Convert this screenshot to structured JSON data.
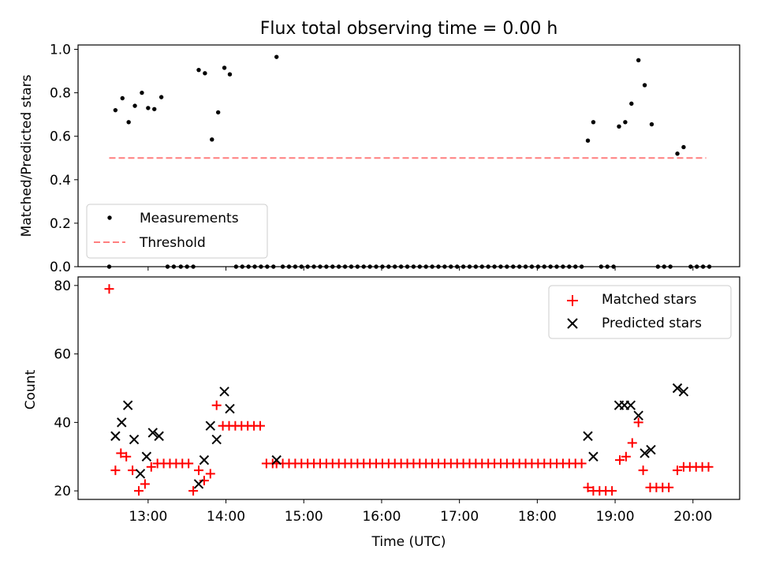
{
  "chart_data": [
    {
      "type": "scatter",
      "title": "Flux total observing time = 0.00 h",
      "xlabel": "",
      "ylabel": "Matched/Predicted stars",
      "xlim": [
        12.1,
        20.6
      ],
      "ylim": [
        0,
        1.02
      ],
      "yticks": [
        0,
        0.2,
        0.4,
        0.6,
        0.8,
        1.0
      ],
      "ytick_labels": [
        "0.0",
        "0.2",
        "0.4",
        "0.6",
        "0.8",
        "1.0"
      ],
      "x_tick_hours": [
        13,
        14,
        15,
        16,
        17,
        18,
        19,
        20
      ],
      "legend": {
        "position": "lower-left",
        "entries": [
          "Measurements",
          "Threshold"
        ]
      },
      "threshold": {
        "name": "Threshold",
        "y": 0.5,
        "x": [
          12.5,
          20.17
        ],
        "color": "#ff7f7f",
        "style": "dashed"
      },
      "series": [
        {
          "name": "Measurements",
          "color": "#000000",
          "marker": "dot",
          "x": [
            12.5,
            12.58,
            12.67,
            12.75,
            12.83,
            12.92,
            13.0,
            13.08,
            13.17,
            13.25,
            13.33,
            13.42,
            13.5,
            13.58,
            13.65,
            13.73,
            13.82,
            13.9,
            13.98,
            14.05,
            14.13,
            14.21,
            14.29,
            14.37,
            14.45,
            14.53,
            14.61,
            14.65,
            14.73,
            14.81,
            14.89,
            14.97,
            15.05,
            15.13,
            15.21,
            15.29,
            15.37,
            15.45,
            15.53,
            15.61,
            15.69,
            15.77,
            15.85,
            15.93,
            16.01,
            16.09,
            16.17,
            16.25,
            16.33,
            16.41,
            16.49,
            16.57,
            16.65,
            16.73,
            16.81,
            16.89,
            16.97,
            17.05,
            17.13,
            17.21,
            17.29,
            17.37,
            17.45,
            17.53,
            17.61,
            17.69,
            17.77,
            17.85,
            17.93,
            18.01,
            18.09,
            18.17,
            18.25,
            18.33,
            18.41,
            18.49,
            18.57,
            18.65,
            18.72,
            18.82,
            18.9,
            18.98,
            19.05,
            19.13,
            19.21,
            19.3,
            19.38,
            19.47,
            19.55,
            19.63,
            19.71,
            19.8,
            19.88,
            19.97,
            20.05,
            20.13,
            20.21
          ],
          "y": [
            0,
            0.72,
            0.775,
            0.665,
            0.74,
            0.8,
            0.73,
            0.725,
            0.78,
            0,
            0,
            0,
            0,
            0,
            0.905,
            0.89,
            0.585,
            0.71,
            0.915,
            0.885,
            0,
            0,
            0,
            0,
            0,
            0,
            0,
            0.965,
            0,
            0,
            0,
            0,
            0,
            0,
            0,
            0,
            0,
            0,
            0,
            0,
            0,
            0,
            0,
            0,
            0,
            0,
            0,
            0,
            0,
            0,
            0,
            0,
            0,
            0,
            0,
            0,
            0,
            0,
            0,
            0,
            0,
            0,
            0,
            0,
            0,
            0,
            0,
            0,
            0,
            0,
            0,
            0,
            0,
            0,
            0,
            0,
            0,
            0.58,
            0.665,
            0,
            0,
            0,
            0.645,
            0.665,
            0.75,
            0.95,
            0.835,
            0.655,
            0,
            0,
            0,
            0.52,
            0.55,
            0,
            0,
            0,
            0
          ]
        }
      ]
    },
    {
      "type": "scatter",
      "title": "",
      "xlabel": "Time (UTC)",
      "ylabel": "Count",
      "xlim": [
        12.1,
        20.6
      ],
      "ylim": [
        17.5,
        82.5
      ],
      "yticks": [
        20,
        40,
        60,
        80
      ],
      "ytick_labels": [
        "20",
        "40",
        "60",
        "80"
      ],
      "x_tick_hours": [
        13,
        14,
        15,
        16,
        17,
        18,
        19,
        20
      ],
      "xtick_labels": [
        "13:00",
        "14:00",
        "15:00",
        "16:00",
        "17:00",
        "18:00",
        "19:00",
        "20:00"
      ],
      "legend": {
        "position": "upper-right",
        "entries": [
          "Matched stars",
          "Predicted stars"
        ]
      },
      "series": [
        {
          "name": "Matched stars",
          "color": "#ff0000",
          "marker": "plus",
          "x": [
            12.5,
            12.58,
            12.65,
            12.72,
            12.8,
            12.88,
            12.96,
            13.04,
            13.12,
            13.2,
            13.28,
            13.36,
            13.44,
            13.52,
            13.58,
            13.65,
            13.72,
            13.8,
            13.88,
            13.96,
            14.04,
            14.12,
            14.2,
            14.28,
            14.36,
            14.44,
            14.52,
            14.6,
            14.65,
            14.73,
            14.81,
            14.89,
            14.97,
            15.05,
            15.13,
            15.21,
            15.29,
            15.37,
            15.45,
            15.53,
            15.61,
            15.69,
            15.77,
            15.85,
            15.93,
            16.01,
            16.09,
            16.17,
            16.25,
            16.33,
            16.41,
            16.49,
            16.57,
            16.65,
            16.73,
            16.81,
            16.89,
            16.97,
            17.05,
            17.13,
            17.21,
            17.29,
            17.37,
            17.45,
            17.53,
            17.61,
            17.69,
            17.77,
            17.85,
            17.93,
            18.01,
            18.09,
            18.17,
            18.25,
            18.33,
            18.41,
            18.49,
            18.57,
            18.65,
            18.72,
            18.8,
            18.88,
            18.96,
            19.06,
            19.14,
            19.22,
            19.3,
            19.36,
            19.45,
            19.53,
            19.61,
            19.69,
            19.8,
            19.88,
            19.96,
            20.04,
            20.12,
            20.2
          ],
          "y": [
            79,
            26,
            31,
            30,
            26,
            20,
            22,
            27,
            28,
            28,
            28,
            28,
            28,
            28,
            20,
            26,
            23,
            25,
            45,
            39,
            39,
            39,
            39,
            39,
            39,
            39,
            28,
            28,
            28,
            28,
            28,
            28,
            28,
            28,
            28,
            28,
            28,
            28,
            28,
            28,
            28,
            28,
            28,
            28,
            28,
            28,
            28,
            28,
            28,
            28,
            28,
            28,
            28,
            28,
            28,
            28,
            28,
            28,
            28,
            28,
            28,
            28,
            28,
            28,
            28,
            28,
            28,
            28,
            28,
            28,
            28,
            28,
            28,
            28,
            28,
            28,
            28,
            28,
            21,
            20,
            20,
            20,
            20,
            29,
            30,
            34,
            40,
            26,
            21,
            21,
            21,
            21,
            26,
            27,
            27,
            27,
            27,
            27
          ]
        },
        {
          "name": "Predicted stars",
          "color": "#000000",
          "marker": "x",
          "x": [
            12.58,
            12.66,
            12.74,
            12.82,
            12.9,
            12.98,
            13.06,
            13.14,
            13.65,
            13.72,
            13.8,
            13.88,
            13.98,
            14.05,
            14.65,
            18.65,
            18.72,
            19.05,
            19.12,
            19.2,
            19.3,
            19.38,
            19.46,
            19.8,
            19.88
          ],
          "y": [
            36,
            40,
            45,
            35,
            25,
            30,
            37,
            36,
            22,
            29,
            39,
            35,
            49,
            44,
            29,
            36,
            30,
            45,
            45,
            45,
            42,
            31,
            32,
            50,
            49
          ]
        }
      ]
    }
  ]
}
